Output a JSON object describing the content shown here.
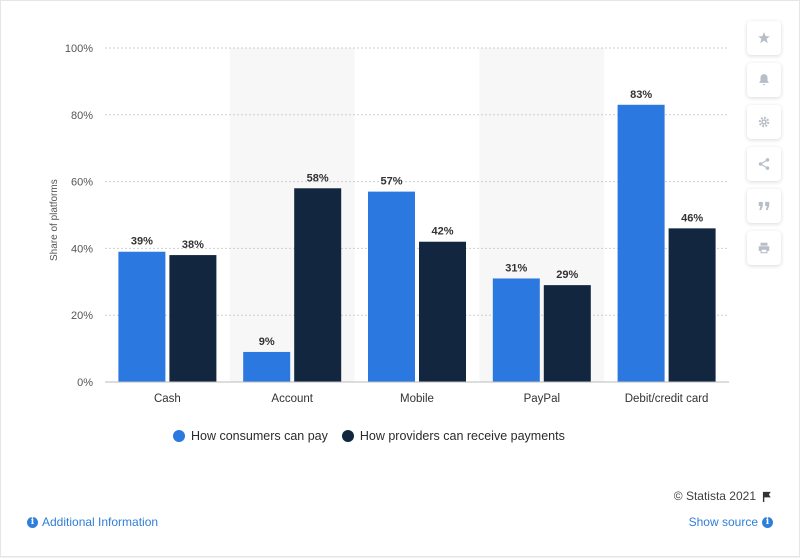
{
  "chart_data": {
    "type": "bar",
    "categories": [
      "Cash",
      "Account",
      "Mobile",
      "PayPal",
      "Debit/credit card"
    ],
    "series": [
      {
        "name": "How consumers can pay",
        "values": [
          39,
          9,
          57,
          31,
          83
        ],
        "color": "#2b78e0"
      },
      {
        "name": "How providers can receive payments",
        "values": [
          38,
          58,
          42,
          29,
          46
        ],
        "color": "#12263f"
      }
    ],
    "ylabel": "Share of platforms",
    "yticks": [
      "0%",
      "20%",
      "40%",
      "60%",
      "80%",
      "100%"
    ],
    "ylim": [
      0,
      100
    ],
    "value_suffix": "%",
    "grid": true,
    "legend_position": "bottom"
  },
  "footer": {
    "copyright": "© Statista 2021",
    "additional_info": "Additional Information",
    "show_source": "Show source"
  },
  "toolbar": {
    "icons": [
      "star-icon",
      "bell-icon",
      "gear-icon",
      "share-icon",
      "quote-icon",
      "print-icon"
    ]
  },
  "colors": {
    "accent": "#2f7ed8",
    "series1": "#2b78e0",
    "series2": "#12263f"
  }
}
